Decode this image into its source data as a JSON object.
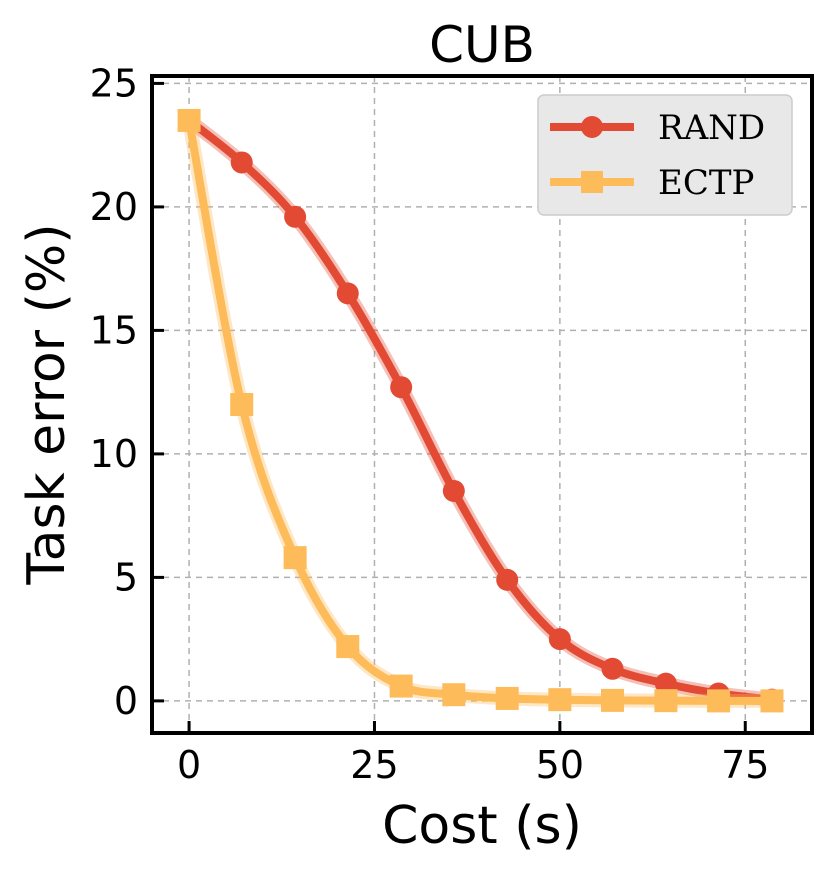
{
  "chart_data": {
    "type": "line",
    "title": "CUB",
    "xlabel": "Cost (s)",
    "ylabel": "Task error (%)",
    "xlim": [
      -5,
      84
    ],
    "ylim": [
      -1.3,
      25.3
    ],
    "xticks": [
      0,
      25,
      50,
      75
    ],
    "yticks": [
      0,
      5,
      10,
      15,
      20,
      25
    ],
    "grid": true,
    "legend_position": "top-right",
    "series": [
      {
        "name": "RAND",
        "color": "#e34a33",
        "marker": "circle",
        "x": [
          0,
          7.1,
          14.3,
          21.4,
          28.6,
          35.7,
          42.9,
          50,
          57.1,
          64.3,
          71.4,
          78.6
        ],
        "y": [
          23.5,
          21.8,
          19.6,
          16.5,
          12.7,
          8.5,
          4.9,
          2.5,
          1.3,
          0.7,
          0.3,
          0.05
        ]
      },
      {
        "name": "ECTP",
        "color": "#fdbb5a",
        "marker": "square",
        "x": [
          0,
          7.1,
          14.3,
          21.4,
          28.6,
          35.7,
          42.9,
          50,
          57.1,
          64.3,
          71.4,
          78.6
        ],
        "y": [
          23.5,
          12.0,
          5.8,
          2.2,
          0.6,
          0.25,
          0.1,
          0.05,
          0.02,
          0.01,
          0.0,
          0.0
        ]
      }
    ]
  }
}
